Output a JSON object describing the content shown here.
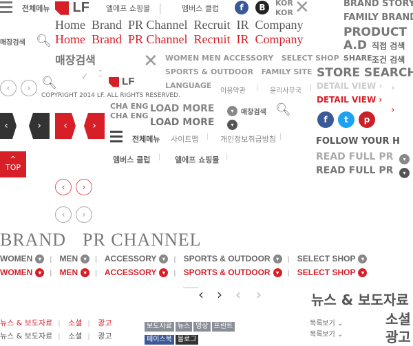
{
  "top": {
    "all_menu": "전체메뉴",
    "elf_shopping": "엘에프 쇼핑몰",
    "members_club": "멤버스 클럽",
    "kor": "KOR",
    "kor2": "KOR"
  },
  "right_menu": {
    "brand_story": "BRAND STORY",
    "family_brand": "FAMILY BRAND",
    "product_ad": "PRODUCT A.D",
    "direct_search": "직접 검색",
    "share": "SHARE",
    "cond_search": "조건 검색",
    "store_search": "STORE SEARCH",
    "detail_view": "DETAIL VIEW",
    "follow": "FOLLOW YOUR H",
    "read_full": "READ FULL PR"
  },
  "gnb": {
    "home": "Home",
    "brand": "Brand",
    "pr": "PR Channel",
    "recruit": "Recruit",
    "ir": "IR",
    "company": "Company"
  },
  "store_search": {
    "label": "매장검색",
    "label_large": "매장검색",
    "label_small": "매장검색"
  },
  "brand_tabs": {
    "women_men": "WOMEN MEN",
    "accessory": "ACCESSORY",
    "select_shop": "SELECT SHOP",
    "sports": "SPORTS & OUTDOOR",
    "family_site": "FAMILY SITE",
    "language": "LANGUAGE",
    "terms": "이용약관",
    "ethics": "윤리사무국"
  },
  "footer": {
    "copyright": "COPYRIGHT 2014 LF. ALL RIGHTS RESERVED.",
    "cha": "CHA",
    "eng": "ENG",
    "load_more": "LOAD MORE",
    "sitemap": "사이트맵",
    "privacy": "개인정보취급방침",
    "all_menu": "전체메뉴",
    "members_club": "멤버스 클럽",
    "elf_shopping": "엘에프 쇼핑몰"
  },
  "section": {
    "brand": "BRAND",
    "pr_channel": "PR CHANNEL"
  },
  "categories": [
    "WOMEN",
    "MEN",
    "ACCESSORY",
    "SPORTS & OUTDOOR",
    "SELECT SHOP"
  ],
  "news": {
    "title": "뉴스 & 보도자료",
    "social": "소셜",
    "ad": "광고",
    "list_view": "목록보기"
  },
  "tags": [
    "보도자료",
    "뉴스",
    "영상",
    "프린트",
    "페이스북",
    "블로그"
  ],
  "buttons": {
    "top": "TOP"
  },
  "colors": {
    "accent": "#d71f28",
    "gray": "#777777",
    "facebook": "#3b5998",
    "twitter": "#1da1f2",
    "pinterest": "#cb2027"
  }
}
